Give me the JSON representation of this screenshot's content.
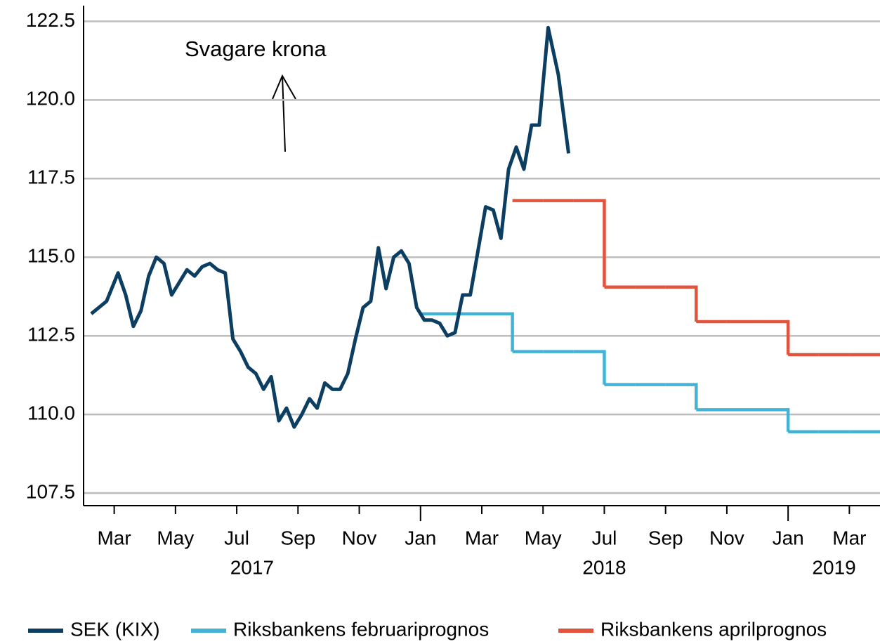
{
  "chart_data": {
    "type": "line",
    "annotation": "Svagare krona",
    "xlim": [
      "2017-02",
      "2019-04"
    ],
    "xticks": [
      {
        "value": "2017-03",
        "label": "Mar"
      },
      {
        "value": "2017-05",
        "label": "May"
      },
      {
        "value": "2017-07",
        "label": "Jul"
      },
      {
        "value": "2017-09",
        "label": "Sep"
      },
      {
        "value": "2017-11",
        "label": "Nov"
      },
      {
        "value": "2018-01",
        "label": "Jan"
      },
      {
        "value": "2018-03",
        "label": "Mar"
      },
      {
        "value": "2018-05",
        "label": "May"
      },
      {
        "value": "2018-07",
        "label": "Jul"
      },
      {
        "value": "2018-09",
        "label": "Sep"
      },
      {
        "value": "2018-11",
        "label": "Nov"
      },
      {
        "value": "2019-01",
        "label": "Jan"
      },
      {
        "value": "2019-03",
        "label": "Mar"
      }
    ],
    "year_labels": [
      "2017",
      "2018",
      "2019"
    ],
    "ylim": [
      107.1,
      123
    ],
    "yticks": [
      107.5,
      {
        "value": 110,
        "label": "110.0"
      },
      112.5,
      {
        "value": 115,
        "label": "115.0"
      },
      117.5,
      {
        "value": 120,
        "label": "120.0"
      },
      122.5
    ],
    "grid": true,
    "legend": "bottom",
    "series": [
      {
        "name": "SEK (KIX)",
        "color": "#0c3e62",
        "x": [
          "2017-02",
          "2017-02",
          "2017-03",
          "2017-03",
          "2017-03",
          "2017-03",
          "2017-04",
          "2017-04",
          "2017-04",
          "2017-04",
          "2017-05",
          "2017-05",
          "2017-05",
          "2017-05",
          "2017-06",
          "2017-06",
          "2017-06",
          "2017-06",
          "2017-07",
          "2017-07",
          "2017-07",
          "2017-07",
          "2017-08",
          "2017-08",
          "2017-08",
          "2017-08",
          "2017-09",
          "2017-09",
          "2017-09",
          "2017-09",
          "2017-10",
          "2017-10",
          "2017-10",
          "2017-10",
          "2017-11",
          "2017-11",
          "2017-11",
          "2017-11",
          "2017-12",
          "2017-12",
          "2017-12",
          "2017-12",
          "2018-01",
          "2018-01",
          "2018-01",
          "2018-01",
          "2018-02",
          "2018-02",
          "2018-02",
          "2018-02",
          "2018-03",
          "2018-03",
          "2018-03",
          "2018-03",
          "2018-04",
          "2018-04",
          "2018-04",
          "2018-04",
          "2018-05",
          "2018-05",
          "2018-05"
        ],
        "values": [
          113.2,
          113.6,
          114.5,
          113.8,
          112.8,
          113.3,
          114.4,
          115.0,
          114.8,
          113.8,
          114.2,
          114.6,
          114.4,
          114.7,
          114.8,
          114.6,
          114.5,
          112.4,
          112.0,
          111.5,
          111.3,
          110.8,
          111.2,
          109.8,
          110.2,
          109.6,
          110.0,
          110.5,
          110.2,
          111.0,
          110.8,
          110.8,
          111.3,
          112.4,
          113.4,
          113.6,
          115.3,
          114.0,
          115.0,
          115.2,
          114.8,
          113.4,
          113.0,
          113.0,
          112.9,
          112.5,
          112.6,
          113.8,
          113.8,
          115.2,
          116.6,
          116.5,
          115.6,
          117.8,
          118.5,
          117.8,
          119.2,
          119.2,
          122.3,
          120.8,
          118.3
        ]
      },
      {
        "name": "Riksbankens februariprognos",
        "color": "#42b3d5",
        "step": true,
        "x": [
          "2018-01",
          "2018-02",
          "2018-03",
          "2018-04",
          "2018-05",
          "2018-06",
          "2018-07",
          "2018-08",
          "2018-09",
          "2018-10",
          "2018-11",
          "2018-12",
          "2019-01",
          "2019-02",
          "2019-03"
        ],
        "values": [
          113.2,
          113.2,
          113.2,
          112.0,
          112.0,
          112.0,
          110.95,
          110.95,
          110.95,
          110.15,
          110.15,
          110.15,
          109.45,
          109.45,
          109.45
        ]
      },
      {
        "name": "Riksbankens aprilprognos",
        "color": "#e1533b",
        "step": true,
        "x": [
          "2018-04",
          "2018-05",
          "2018-06",
          "2018-07",
          "2018-08",
          "2018-09",
          "2018-10",
          "2018-11",
          "2018-12",
          "2019-01",
          "2019-02",
          "2019-03"
        ],
        "values": [
          116.8,
          116.8,
          116.8,
          114.05,
          114.05,
          114.05,
          112.95,
          112.95,
          112.95,
          111.9,
          111.9,
          111.9
        ]
      }
    ]
  }
}
